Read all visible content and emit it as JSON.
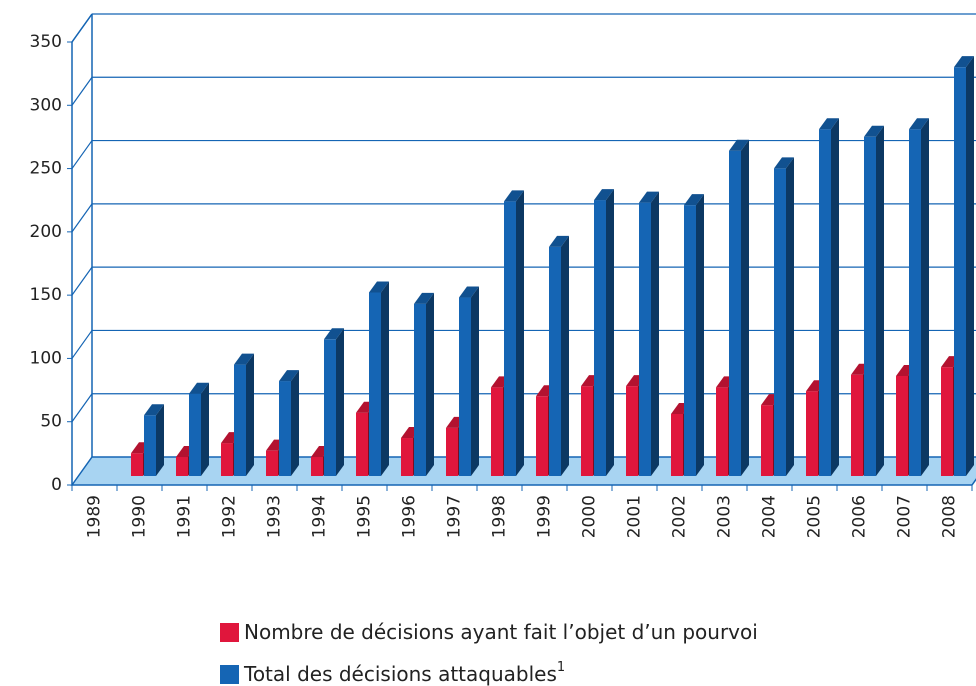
{
  "chart_data": {
    "type": "bar",
    "categories": [
      "1989",
      "1990",
      "1991",
      "1992",
      "1993",
      "1994",
      "1995",
      "1996",
      "1997",
      "1998",
      "1999",
      "2000",
      "2001",
      "2002",
      "2003",
      "2004",
      "2005",
      "2006",
      "2007",
      "2008"
    ],
    "series": [
      {
        "name": "Nombre de décisions ayant fait l’objet d’un pourvoi",
        "color": "#e0163c",
        "values": [
          null,
          18,
          15,
          26,
          20,
          15,
          50,
          30,
          38,
          70,
          63,
          71,
          71,
          49,
          70,
          56,
          67,
          80,
          79,
          86
        ]
      },
      {
        "name": "Total des décisions attaquables",
        "note": "1",
        "color": "#1565b4",
        "values": [
          null,
          48,
          65,
          88,
          75,
          108,
          145,
          136,
          141,
          217,
          181,
          218,
          216,
          214,
          257,
          243,
          274,
          268,
          274,
          323
        ]
      }
    ],
    "ylim": [
      0,
      350
    ],
    "yticks": [
      0,
      50,
      100,
      150,
      200,
      250,
      300,
      350
    ],
    "grid": true
  }
}
